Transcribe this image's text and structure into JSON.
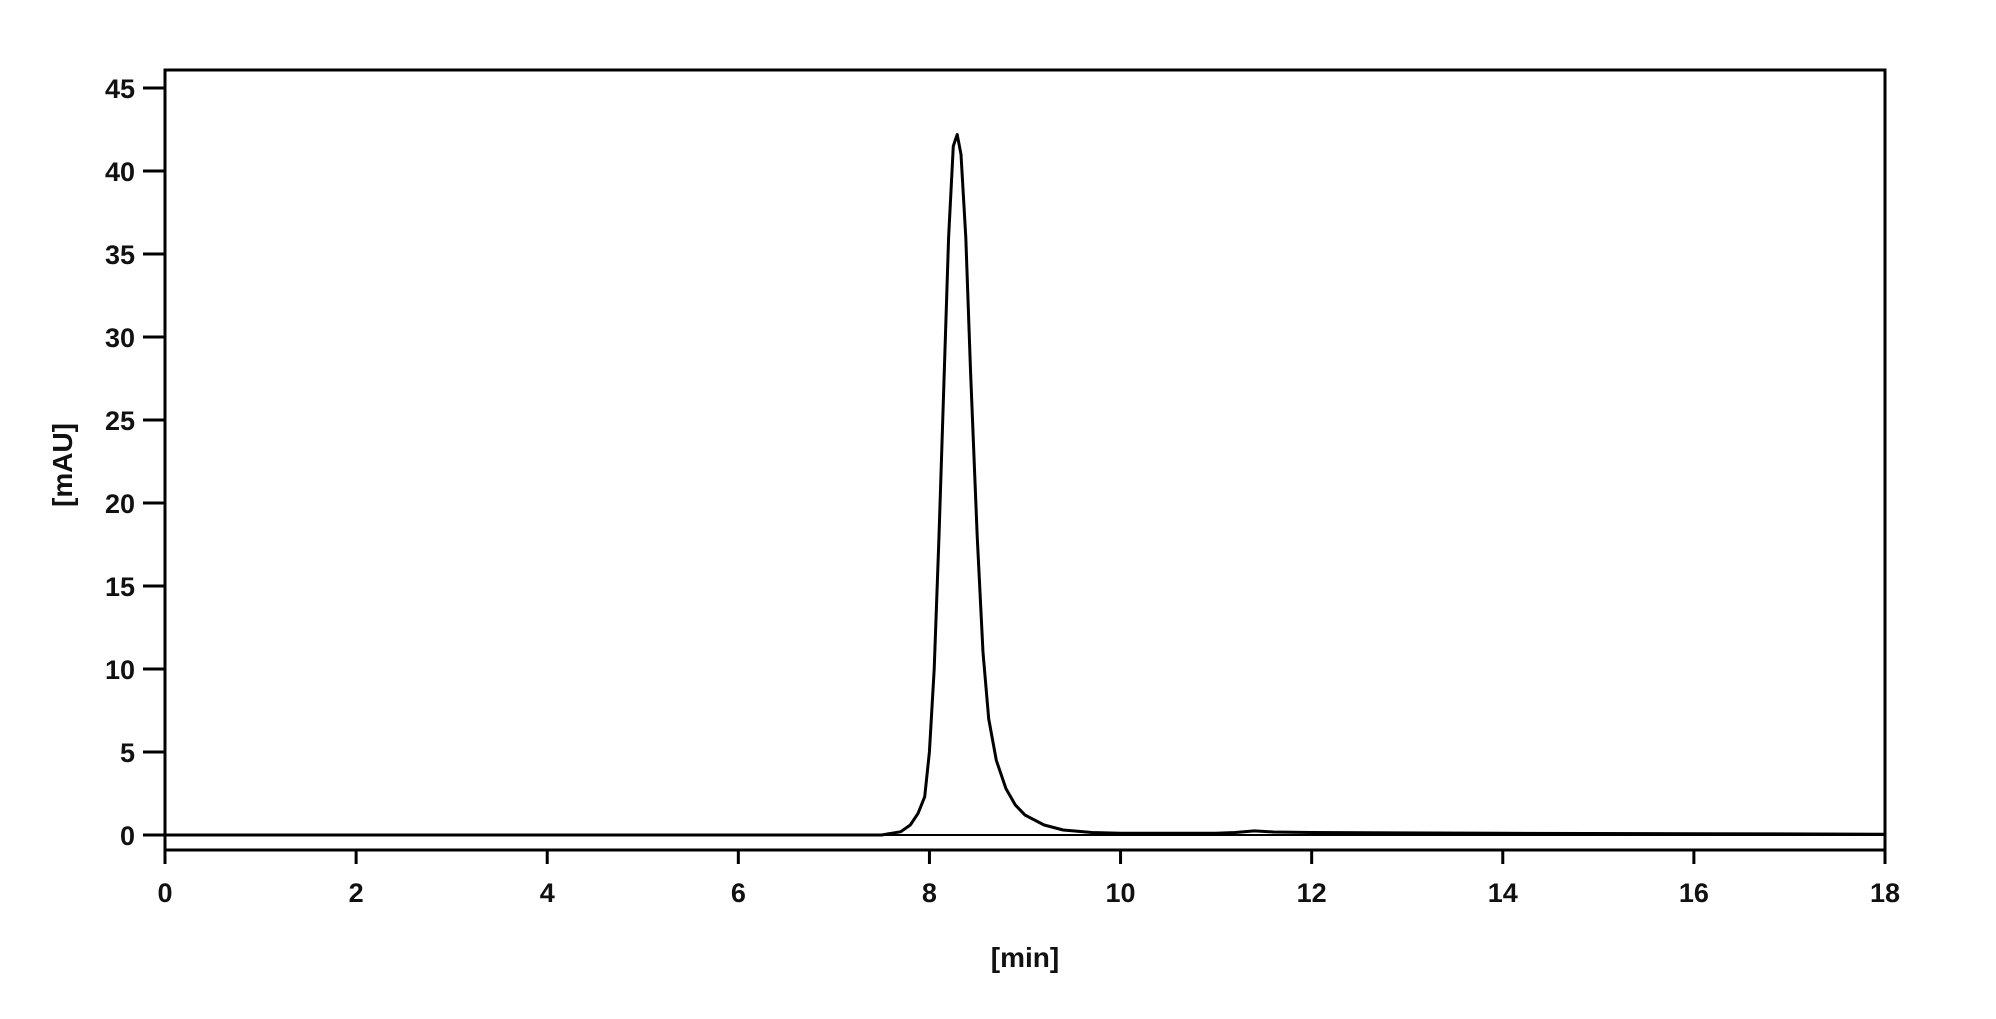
{
  "chart_data": {
    "type": "line",
    "title": "",
    "xlabel": "[min]",
    "ylabel": "[mAU]",
    "xlim": [
      0,
      18
    ],
    "ylim": [
      -0.9,
      46
    ],
    "xticks": [
      0,
      2,
      4,
      6,
      8,
      10,
      12,
      14,
      16,
      18
    ],
    "yticks": [
      0,
      5,
      10,
      15,
      20,
      25,
      30,
      35,
      40,
      45
    ],
    "grid": false,
    "series": [
      {
        "color": "#000000",
        "x": [
          0,
          7.5,
          7.7,
          7.8,
          7.88,
          7.95,
          8.0,
          8.05,
          8.1,
          8.15,
          8.2,
          8.25,
          8.29,
          8.33,
          8.38,
          8.43,
          8.5,
          8.56,
          8.62,
          8.7,
          8.8,
          8.9,
          9.0,
          9.2,
          9.4,
          9.7,
          10,
          11,
          11.2,
          11.4,
          11.6,
          12,
          14,
          16,
          18
        ],
        "y": [
          0,
          0,
          0.2,
          0.6,
          1.3,
          2.3,
          5,
          10,
          18,
          27,
          36,
          41.5,
          42.2,
          41,
          36,
          28,
          18,
          11,
          7,
          4.5,
          2.8,
          1.8,
          1.2,
          0.6,
          0.3,
          0.15,
          0.1,
          0.1,
          0.15,
          0.25,
          0.18,
          0.15,
          0.1,
          0.08,
          0.05
        ]
      }
    ]
  }
}
